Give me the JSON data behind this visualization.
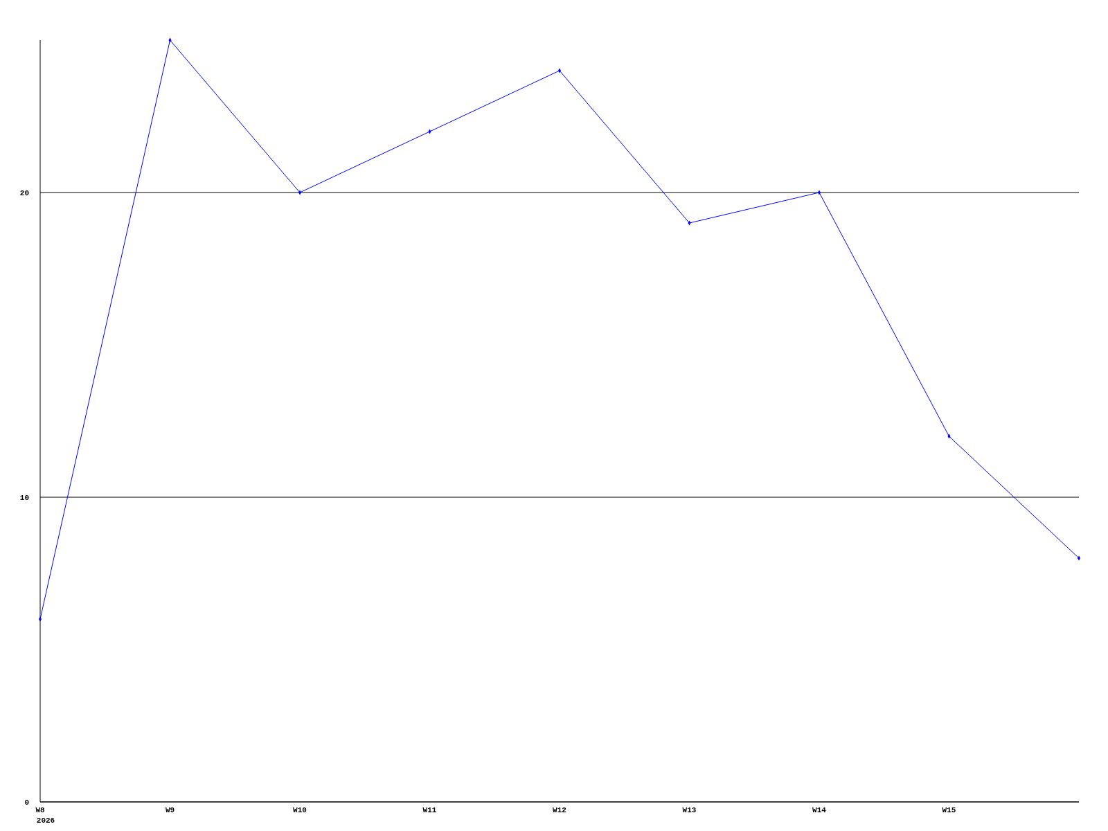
{
  "chart_data": {
    "type": "line",
    "categories": [
      "W8\n2026",
      "W9",
      "W10",
      "W11",
      "W12",
      "W13",
      "W14",
      "W15",
      null
    ],
    "series": [
      {
        "color": "#0000ff",
        "values": [
          6,
          25,
          20,
          22,
          24,
          19,
          20,
          12,
          8
        ]
      }
    ],
    "ylim": [
      0,
      25
    ],
    "yticks": [
      0,
      10,
      20
    ],
    "grid": "y",
    "marker": "diamond",
    "line_style": "solid"
  }
}
